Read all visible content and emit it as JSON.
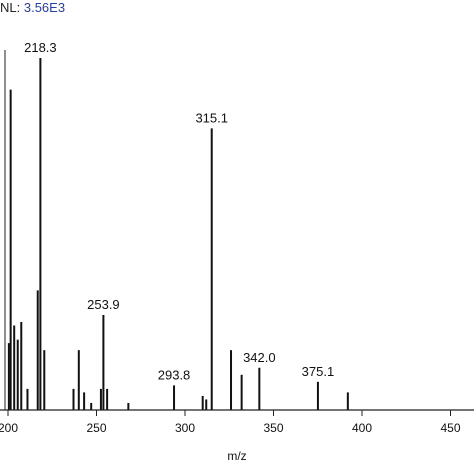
{
  "header": {
    "nl_label": "NL:",
    "nl_value": "3.56E3"
  },
  "chart_data": {
    "type": "bar",
    "title": "",
    "xlabel": "m/z",
    "ylabel": "",
    "xlim": [
      200,
      460
    ],
    "ylim": [
      0,
      100
    ],
    "x_ticks": [
      {
        "value": 200,
        "label": "200"
      },
      {
        "value": 250,
        "label": "250"
      },
      {
        "value": 300,
        "label": "300"
      },
      {
        "value": 350,
        "label": "350"
      },
      {
        "value": 400,
        "label": "400"
      },
      {
        "value": 450,
        "label": "450"
      }
    ],
    "peaks": [
      {
        "x": 200.5,
        "y": 19
      },
      {
        "x": 201.5,
        "y": 91
      },
      {
        "x": 203.5,
        "y": 24
      },
      {
        "x": 205.5,
        "y": 20
      },
      {
        "x": 207.5,
        "y": 25
      },
      {
        "x": 211.0,
        "y": 6
      },
      {
        "x": 216.8,
        "y": 34
      },
      {
        "x": 218.3,
        "y": 100,
        "label": "218.3"
      },
      {
        "x": 220.5,
        "y": 17
      },
      {
        "x": 237.0,
        "y": 6
      },
      {
        "x": 240.0,
        "y": 17
      },
      {
        "x": 243.0,
        "y": 5
      },
      {
        "x": 247.0,
        "y": 2
      },
      {
        "x": 252.5,
        "y": 6
      },
      {
        "x": 253.9,
        "y": 27,
        "label": "253.9"
      },
      {
        "x": 256.0,
        "y": 6
      },
      {
        "x": 268.0,
        "y": 2
      },
      {
        "x": 293.8,
        "y": 7,
        "label": "293.8"
      },
      {
        "x": 310.0,
        "y": 4
      },
      {
        "x": 312.0,
        "y": 3
      },
      {
        "x": 315.1,
        "y": 80,
        "label": "315.1"
      },
      {
        "x": 326.0,
        "y": 17
      },
      {
        "x": 332.0,
        "y": 10
      },
      {
        "x": 342.0,
        "y": 12,
        "label": "342.0"
      },
      {
        "x": 375.1,
        "y": 8,
        "label": "375.1"
      },
      {
        "x": 392.0,
        "y": 5
      }
    ]
  }
}
